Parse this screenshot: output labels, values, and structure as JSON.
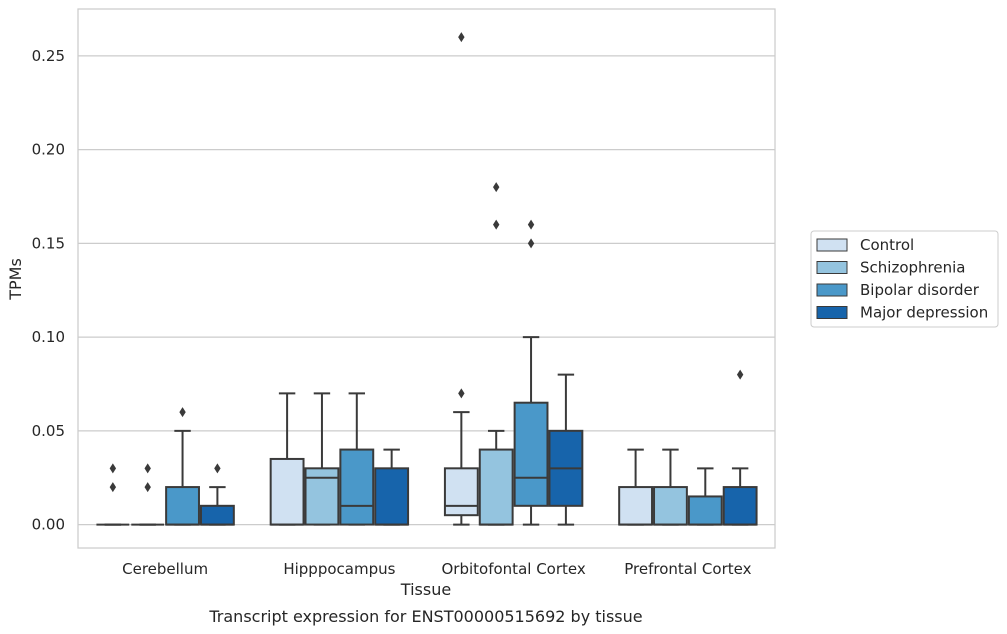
{
  "chart_data": {
    "type": "box",
    "title": "",
    "caption": "Transcript expression for ENST00000515692 by tissue",
    "xlabel": "Tissue",
    "ylabel": "TPMs",
    "ylim": [
      -0.0125,
      0.275
    ],
    "yticks": [
      0.0,
      0.05,
      0.1,
      0.15,
      0.2,
      0.25
    ],
    "ytick_labels": [
      "0.00",
      "0.05",
      "0.10",
      "0.15",
      "0.20",
      "0.25"
    ],
    "grid": "y",
    "legend_position": "right",
    "categories": [
      "Cerebellum",
      "Hipppocampus",
      "Orbitofontal Cortex",
      "Prefrontal Cortex"
    ],
    "series": [
      {
        "name": "Control",
        "color": "#d0e1f2",
        "boxes": [
          {
            "q1": 0.0,
            "median": 0.0,
            "q3": 0.0,
            "whisker_low": 0.0,
            "whisker_high": 0.0,
            "outliers": [
              0.02,
              0.03
            ]
          },
          {
            "q1": 0.0,
            "median": 0.0,
            "q3": 0.035,
            "whisker_low": 0.0,
            "whisker_high": 0.07,
            "outliers": []
          },
          {
            "q1": 0.005,
            "median": 0.01,
            "q3": 0.03,
            "whisker_low": 0.0,
            "whisker_high": 0.06,
            "outliers": [
              0.07,
              0.26
            ]
          },
          {
            "q1": 0.0,
            "median": 0.0,
            "q3": 0.02,
            "whisker_low": 0.0,
            "whisker_high": 0.04,
            "outliers": []
          }
        ]
      },
      {
        "name": "Schizophrenia",
        "color": "#94c4df",
        "boxes": [
          {
            "q1": 0.0,
            "median": 0.0,
            "q3": 0.0,
            "whisker_low": 0.0,
            "whisker_high": 0.0,
            "outliers": [
              0.02,
              0.03
            ]
          },
          {
            "q1": 0.0,
            "median": 0.025,
            "q3": 0.03,
            "whisker_low": 0.0,
            "whisker_high": 0.07,
            "outliers": []
          },
          {
            "q1": 0.0,
            "median": 0.0,
            "q3": 0.04,
            "whisker_low": 0.0,
            "whisker_high": 0.05,
            "outliers": [
              0.16,
              0.18
            ]
          },
          {
            "q1": 0.0,
            "median": 0.0,
            "q3": 0.02,
            "whisker_low": 0.0,
            "whisker_high": 0.04,
            "outliers": []
          }
        ]
      },
      {
        "name": "Bipolar disorder",
        "color": "#4a98c9",
        "boxes": [
          {
            "q1": 0.0,
            "median": 0.0,
            "q3": 0.02,
            "whisker_low": 0.0,
            "whisker_high": 0.05,
            "outliers": [
              0.06
            ]
          },
          {
            "q1": 0.0,
            "median": 0.01,
            "q3": 0.04,
            "whisker_low": 0.0,
            "whisker_high": 0.07,
            "outliers": []
          },
          {
            "q1": 0.01,
            "median": 0.025,
            "q3": 0.065,
            "whisker_low": 0.0,
            "whisker_high": 0.1,
            "outliers": [
              0.15,
              0.16
            ]
          },
          {
            "q1": 0.0,
            "median": 0.0,
            "q3": 0.015,
            "whisker_low": 0.0,
            "whisker_high": 0.03,
            "outliers": []
          }
        ]
      },
      {
        "name": "Major depression",
        "color": "#1764ab",
        "boxes": [
          {
            "q1": 0.0,
            "median": 0.0,
            "q3": 0.01,
            "whisker_low": 0.0,
            "whisker_high": 0.02,
            "outliers": [
              0.03
            ]
          },
          {
            "q1": 0.0,
            "median": 0.0,
            "q3": 0.03,
            "whisker_low": 0.0,
            "whisker_high": 0.04,
            "outliers": []
          },
          {
            "q1": 0.01,
            "median": 0.03,
            "q3": 0.05,
            "whisker_low": 0.0,
            "whisker_high": 0.08,
            "outliers": []
          },
          {
            "q1": 0.0,
            "median": 0.0,
            "q3": 0.02,
            "whisker_low": 0.0,
            "whisker_high": 0.03,
            "outliers": [
              0.08
            ]
          }
        ]
      }
    ]
  }
}
